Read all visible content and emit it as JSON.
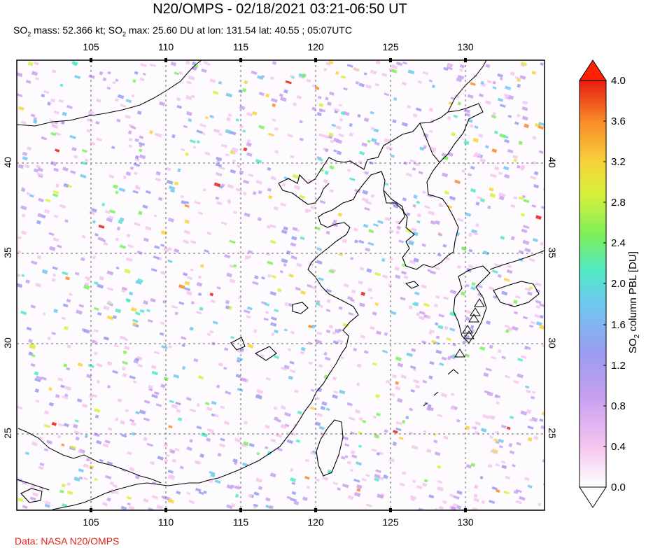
{
  "title": "N20/OMPS - 02/18/2021 03:21-06:50 UT",
  "subtitle": {
    "so2_mass_prefix": "SO",
    "so2_mass_text": " mass: 52.366 kt; SO",
    "so2_max_text": " max: 25.60 DU at lon: 131.54 lat: 40.55 ; 05:07UTC"
  },
  "map": {
    "lon_range": [
      100,
      135
    ],
    "lat_range": [
      20.5,
      45.5
    ],
    "lon_ticks": [
      "105",
      "110",
      "115",
      "120",
      "125",
      "130"
    ],
    "lat_ticks": [
      "40",
      "35",
      "30",
      "25"
    ],
    "volcano_marker_icon": "triangle-outline"
  },
  "colorbar": {
    "label_prefix": "SO",
    "label_suffix": " column PBL [DU]",
    "ticks": [
      "4.0",
      "3.6",
      "3.2",
      "2.8",
      "2.4",
      "2.0",
      "1.6",
      "1.2",
      "0.8",
      "0.4",
      "0.0"
    ],
    "range": [
      0.0,
      4.0
    ],
    "colors": [
      "#ffffff",
      "#f4c6ef",
      "#c8a0f0",
      "#9a9cf0",
      "#6fc8f0",
      "#52e8c8",
      "#7cf05a",
      "#d8f03c",
      "#f8d23a",
      "#f88a28",
      "#e81c10"
    ],
    "overflow_color": "#ff2000"
  },
  "credit": "Data: NASA N20/OMPS"
}
